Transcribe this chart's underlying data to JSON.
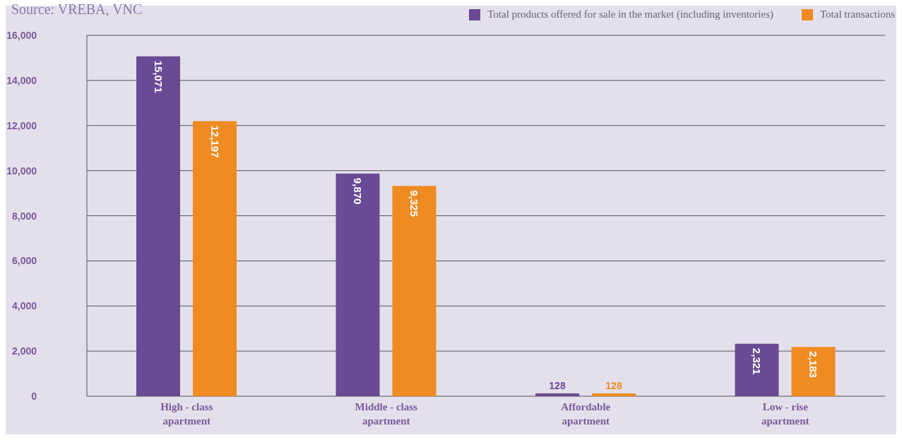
{
  "chart_data": {
    "type": "bar",
    "categories": [
      "High - class apartment",
      "Middle - class apartment",
      "Affordable apartment",
      "Low - rise apartment"
    ],
    "series": [
      {
        "name": "Total products offered for sale in the market (including inventories)",
        "color": "#6a4a94",
        "values": [
          15071,
          9870,
          128,
          2321
        ],
        "value_labels": [
          "15,071",
          "9,870",
          "128",
          "2,321"
        ]
      },
      {
        "name": "Total transactions",
        "color": "#ee8b22",
        "values": [
          12197,
          9325,
          128,
          2183
        ],
        "value_labels": [
          "12,197",
          "9,325",
          "128",
          "2,183"
        ]
      }
    ],
    "ylim": [
      0,
      16000
    ],
    "yticks": [
      {
        "value": 0,
        "label": "0"
      },
      {
        "value": 2000,
        "label": "2,000"
      },
      {
        "value": 4000,
        "label": "4,000"
      },
      {
        "value": 6000,
        "label": "6,000"
      },
      {
        "value": 8000,
        "label": "8,000"
      },
      {
        "value": 10000,
        "label": "10,000"
      },
      {
        "value": 12000,
        "label": "12,000"
      },
      {
        "value": 14000,
        "label": "14,000"
      },
      {
        "value": 16000,
        "label": "16,000"
      }
    ],
    "grid": "y",
    "legend": "top right",
    "annotations": [
      "Source: VREBA, VNC"
    ]
  }
}
